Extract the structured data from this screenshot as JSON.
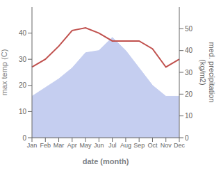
{
  "chart_data": {
    "type": "line",
    "categories": [
      "Jan",
      "Feb",
      "Mar",
      "Apr",
      "May",
      "Jun",
      "Jul",
      "Aug",
      "Sep",
      "Oct",
      "Nov",
      "Dec"
    ],
    "xlabel": "date (month)",
    "ylabel": "max temp (C)",
    "y2label": "med. precipitation\n(kg/m2)",
    "ylim": [
      0,
      50
    ],
    "yticks": [
      0,
      10,
      20,
      30,
      40
    ],
    "y2lim": [
      0,
      60
    ],
    "y2ticks": [
      0,
      10,
      20,
      30,
      40,
      50
    ],
    "series": [
      {
        "type": "area",
        "axis": "y2",
        "color": "#c5cef0",
        "values": [
          19,
          23,
          27,
          32,
          39,
          40,
          46,
          40,
          32,
          24,
          19,
          19
        ]
      },
      {
        "type": "line",
        "color": "#c0504d",
        "values": [
          27,
          30,
          35,
          41,
          42,
          40,
          37,
          37,
          37,
          34,
          27,
          30
        ]
      }
    ]
  }
}
